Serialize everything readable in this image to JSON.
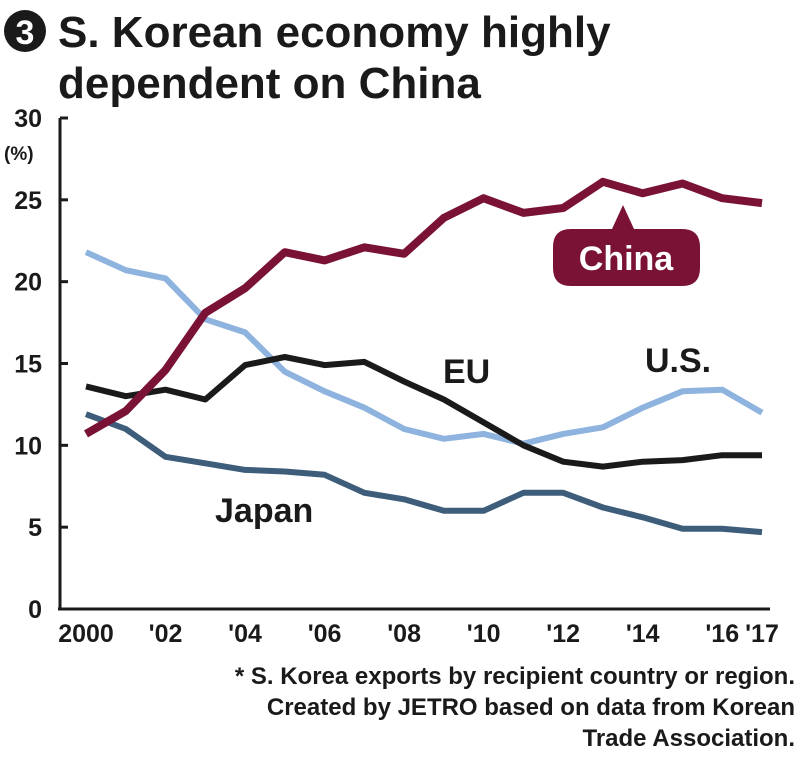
{
  "badge": "3",
  "title_line1": "S. Korean economy highly",
  "title_line2": "dependent on China",
  "chart_data": {
    "type": "line",
    "title": "S. Korean economy highly dependent on China",
    "ylabel": "(%)",
    "xlabel": "",
    "ylim": [
      0,
      30
    ],
    "yticks": [
      0,
      5,
      10,
      15,
      20,
      25,
      30
    ],
    "x": [
      2000,
      2001,
      2002,
      2003,
      2004,
      2005,
      2006,
      2007,
      2008,
      2009,
      2010,
      2011,
      2012,
      2013,
      2014,
      2015,
      2016,
      2017
    ],
    "xtick_labels": [
      "2000",
      "'02",
      "'04",
      "'06",
      "'08",
      "'10",
      "'12",
      "'14",
      "'16",
      "'17"
    ],
    "xtick_values": [
      2000,
      2002,
      2004,
      2006,
      2008,
      2010,
      2012,
      2014,
      2016,
      2017
    ],
    "grid": false,
    "series": [
      {
        "name": "China",
        "color": "#7a1236",
        "values": [
          10.7,
          12.1,
          14.6,
          18.1,
          19.6,
          21.8,
          21.3,
          22.1,
          21.7,
          23.9,
          25.1,
          24.2,
          24.5,
          26.1,
          25.4,
          26.0,
          25.1,
          24.8
        ]
      },
      {
        "name": "U.S.",
        "color": "#8db3de",
        "values": [
          21.8,
          20.7,
          20.2,
          17.7,
          16.9,
          14.5,
          13.3,
          12.3,
          11.0,
          10.4,
          10.7,
          10.1,
          10.7,
          11.1,
          12.3,
          13.3,
          13.4,
          12.0
        ]
      },
      {
        "name": "EU",
        "color": "#1a1a1a",
        "values": [
          13.6,
          13.0,
          13.4,
          12.8,
          14.9,
          15.4,
          14.9,
          15.1,
          13.9,
          12.8,
          11.4,
          10.0,
          9.0,
          8.7,
          9.0,
          9.1,
          9.4,
          9.4
        ]
      },
      {
        "name": "Japan",
        "color": "#3e5d7a",
        "values": [
          11.9,
          11.0,
          9.3,
          8.9,
          8.5,
          8.4,
          8.2,
          7.1,
          6.7,
          6.0,
          6.0,
          7.1,
          7.1,
          6.2,
          5.6,
          4.9,
          4.9,
          4.7
        ]
      }
    ],
    "annotations": [
      "China",
      "U.S.",
      "EU",
      "Japan"
    ]
  },
  "note_line1": "* S. Korea exports by recipient country or region.",
  "note_line2": "Created by JETRO based on data from Korean",
  "note_line3": "Trade Association."
}
